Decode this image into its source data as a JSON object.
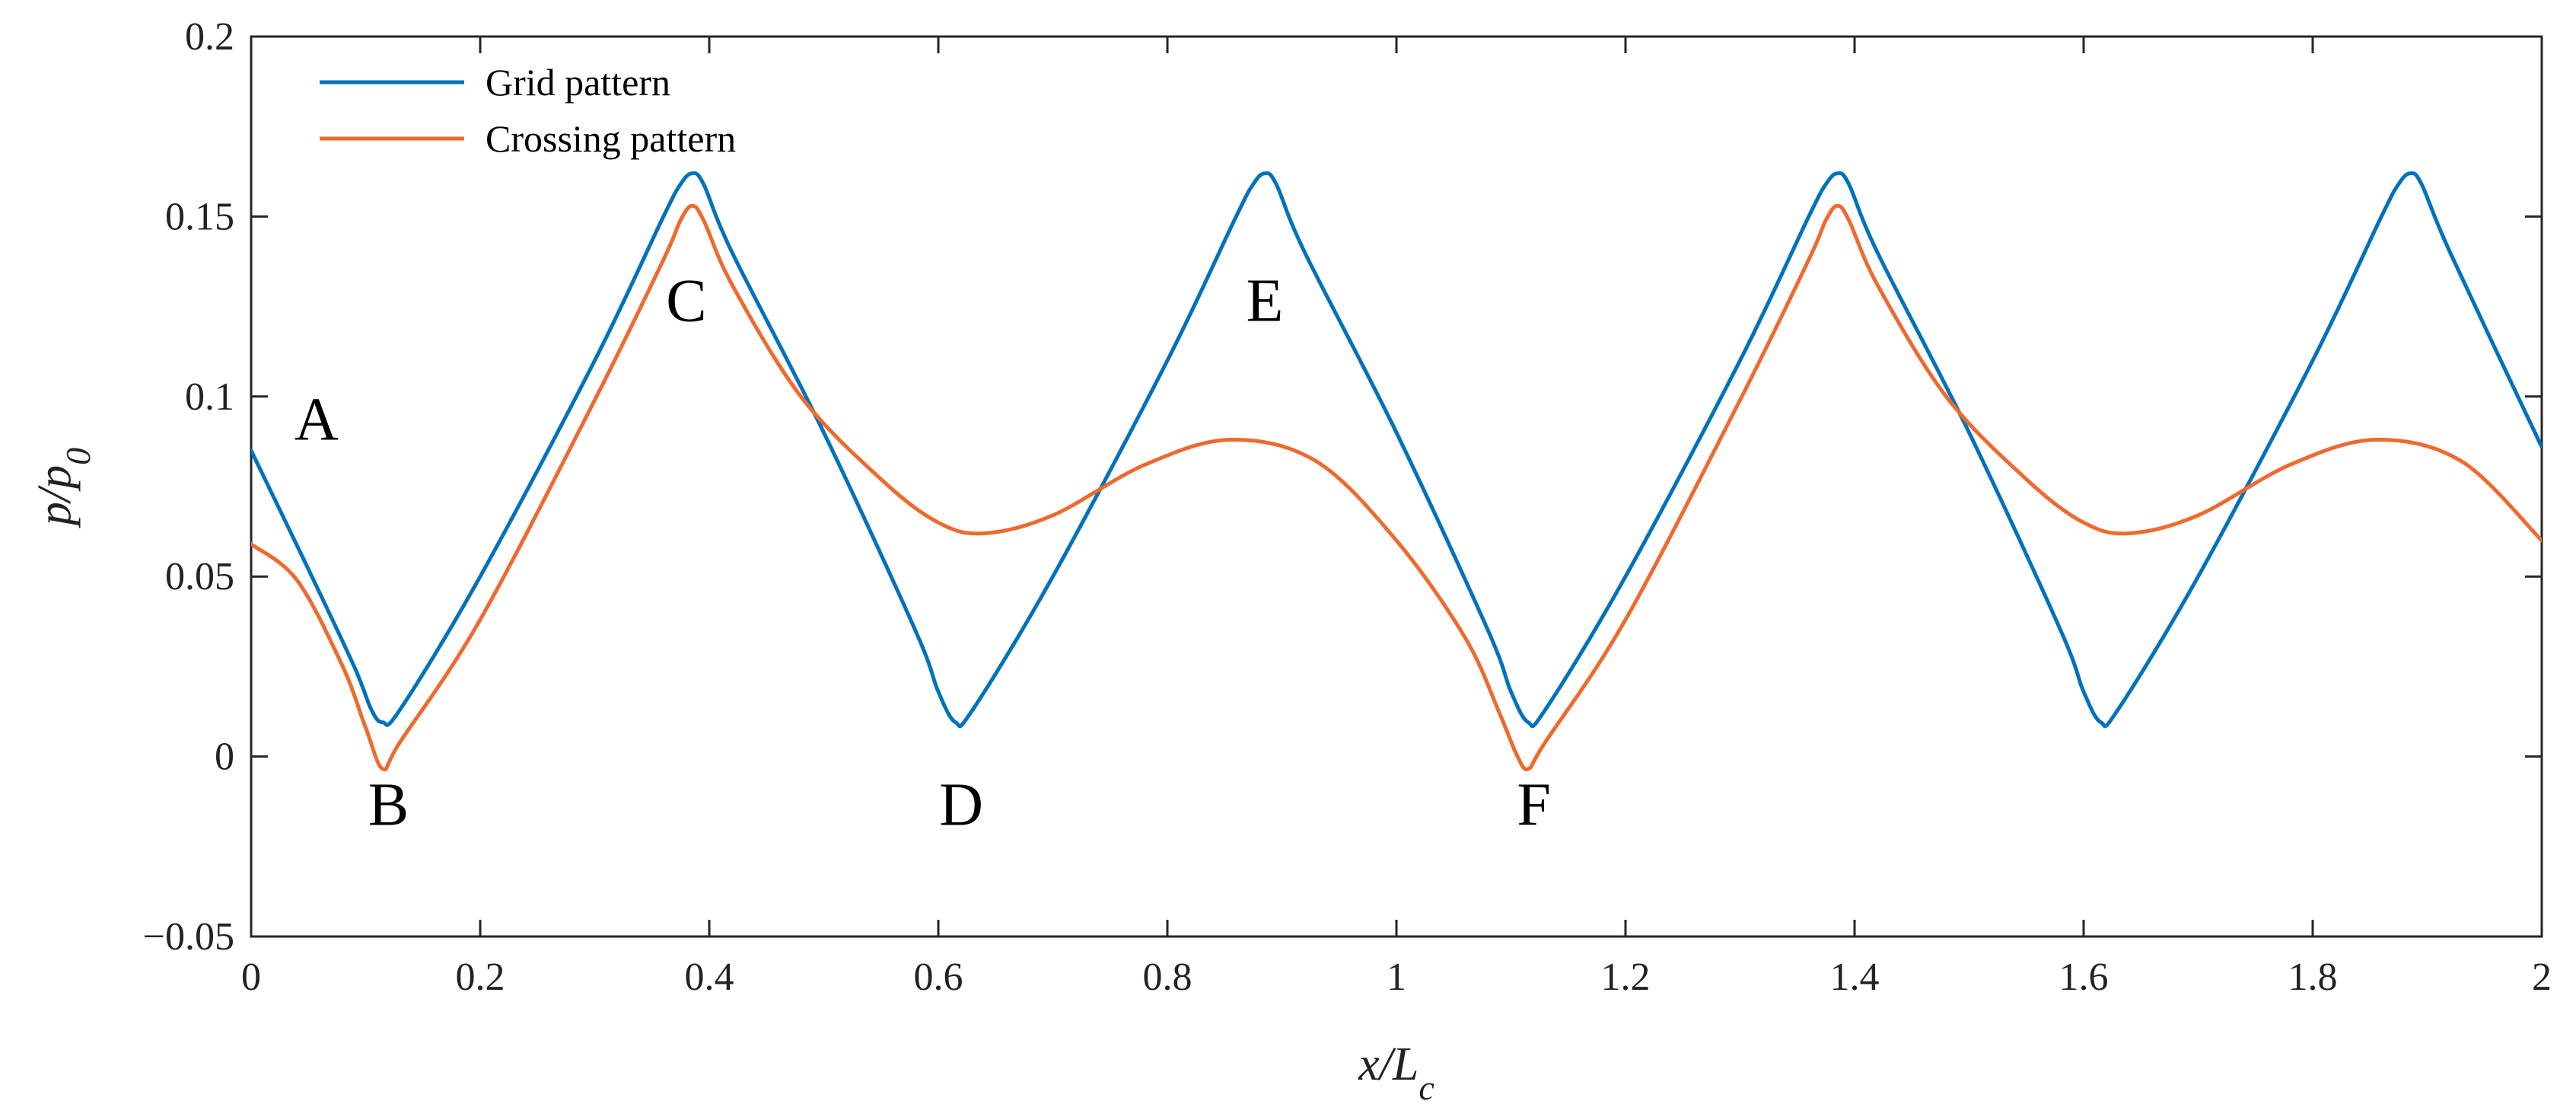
{
  "chart_data": {
    "type": "line",
    "xlabel": {
      "main": "x/L",
      "sub": "c"
    },
    "ylabel": {
      "main": "p/p",
      "sub": "0"
    },
    "xlim": [
      0,
      2
    ],
    "ylim": [
      -0.05,
      0.2
    ],
    "x_ticks": [
      0,
      0.2,
      0.4,
      0.6,
      0.8,
      1,
      1.2,
      1.4,
      1.6,
      1.8,
      2
    ],
    "x_tick_labels": [
      "0",
      "0.2",
      "0.4",
      "0.6",
      "0.8",
      "1",
      "1.2",
      "1.4",
      "1.6",
      "1.8",
      "2"
    ],
    "y_ticks": [
      -0.05,
      0,
      0.05,
      0.1,
      0.15,
      0.2
    ],
    "y_tick_labels": [
      "−0.05",
      "0",
      "0.05",
      "0.1",
      "0.15",
      "0.2"
    ],
    "grid": false,
    "legend_position": "top-left",
    "series": [
      {
        "name": "Grid pattern",
        "color": "#0072BD",
        "x": [
          0,
          0.05,
          0.09,
          0.105,
          0.115,
          0.13,
          0.2,
          0.3,
          0.36,
          0.375,
          0.385,
          0.395,
          0.42,
          0.5,
          0.58,
          0.6,
          0.615,
          0.63,
          0.7,
          0.8,
          0.86,
          0.875,
          0.885,
          0.895,
          0.92,
          1.0,
          1.08,
          1.1,
          1.115,
          1.13,
          1.2,
          1.3,
          1.36,
          1.375,
          1.385,
          1.395,
          1.42,
          1.5,
          1.58,
          1.6,
          1.615,
          1.63,
          1.7,
          1.8,
          1.86,
          1.875,
          1.885,
          1.895,
          1.92,
          2.0
        ],
        "y": [
          0.085,
          0.052,
          0.025,
          0.013,
          0.0095,
          0.013,
          0.05,
          0.11,
          0.15,
          0.159,
          0.162,
          0.159,
          0.14,
          0.09,
          0.035,
          0.018,
          0.0095,
          0.013,
          0.05,
          0.11,
          0.15,
          0.159,
          0.162,
          0.159,
          0.14,
          0.09,
          0.035,
          0.018,
          0.0095,
          0.013,
          0.05,
          0.11,
          0.15,
          0.159,
          0.162,
          0.159,
          0.14,
          0.09,
          0.035,
          0.018,
          0.0095,
          0.013,
          0.05,
          0.11,
          0.15,
          0.159,
          0.162,
          0.159,
          0.14,
          0.086
        ]
      },
      {
        "name": "Crossing pattern",
        "color": "#EE6A2F",
        "x": [
          0,
          0.04,
          0.08,
          0.1,
          0.115,
          0.13,
          0.2,
          0.3,
          0.36,
          0.375,
          0.385,
          0.395,
          0.42,
          0.48,
          0.55,
          0.6,
          0.64,
          0.7,
          0.78,
          0.855,
          0.93,
          1.0,
          1.06,
          1.09,
          1.105,
          1.115,
          1.13,
          1.2,
          1.3,
          1.36,
          1.375,
          1.385,
          1.395,
          1.42,
          1.48,
          1.55,
          1.6,
          1.64,
          1.7,
          1.78,
          1.855,
          1.93,
          2.0
        ],
        "y": [
          0.059,
          0.049,
          0.025,
          0.008,
          -0.0035,
          0.004,
          0.038,
          0.099,
          0.138,
          0.149,
          0.153,
          0.149,
          0.131,
          0.1,
          0.077,
          0.065,
          0.062,
          0.067,
          0.081,
          0.088,
          0.082,
          0.06,
          0.033,
          0.012,
          0.0005,
          -0.0035,
          0.004,
          0.038,
          0.099,
          0.138,
          0.149,
          0.153,
          0.149,
          0.131,
          0.1,
          0.077,
          0.065,
          0.062,
          0.067,
          0.081,
          0.088,
          0.082,
          0.06
        ]
      }
    ],
    "annotations": [
      {
        "text": "A",
        "x": 0.057,
        "y": 0.088
      },
      {
        "text": "B",
        "x": 0.12,
        "y": -0.019
      },
      {
        "text": "C",
        "x": 0.38,
        "y": 0.121
      },
      {
        "text": "D",
        "x": 0.62,
        "y": -0.019
      },
      {
        "text": "E",
        "x": 0.885,
        "y": 0.121
      },
      {
        "text": "F",
        "x": 1.12,
        "y": -0.019
      }
    ]
  }
}
